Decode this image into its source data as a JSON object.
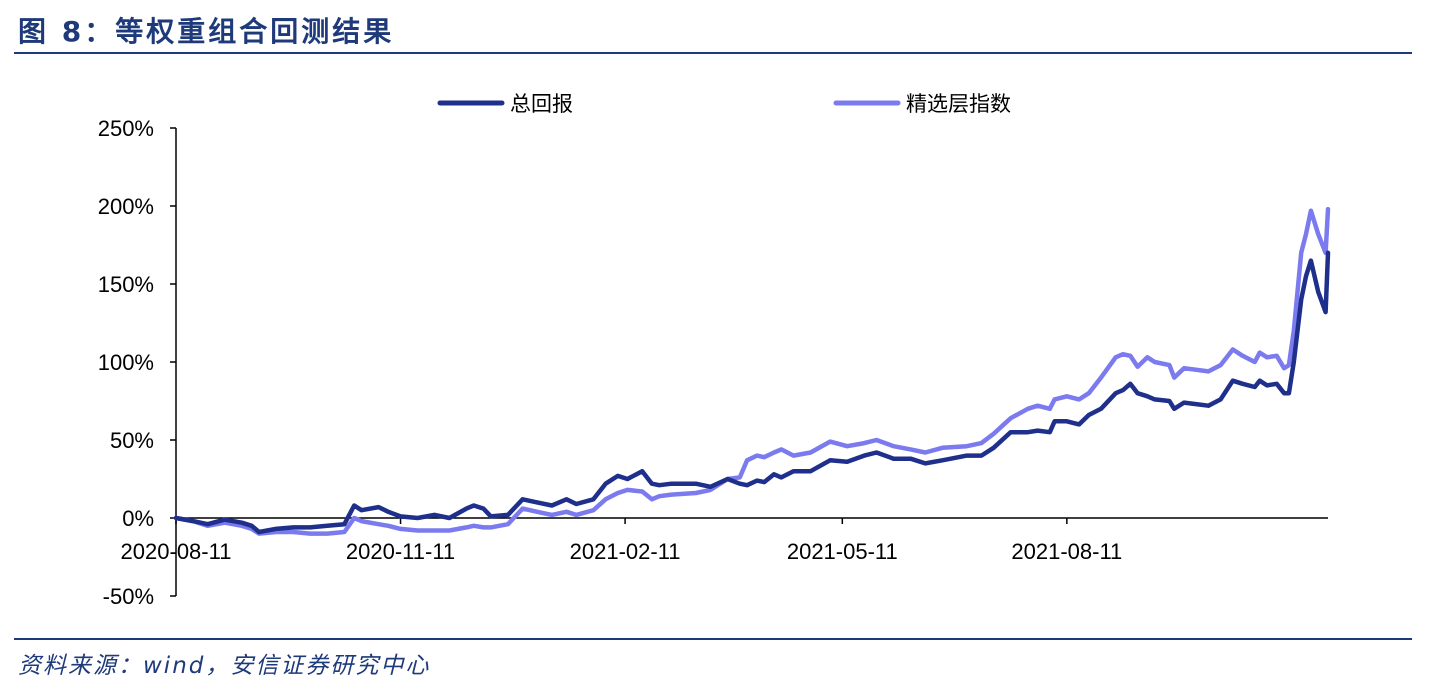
{
  "figure": {
    "title": "图 8：等权重组合回测结果",
    "source": "资料来源：wind，安信证券研究中心"
  },
  "chart_data": {
    "type": "line",
    "title": "",
    "xlabel": "",
    "ylabel": "",
    "ylim": [
      -50,
      250
    ],
    "y_ticks": [
      -50,
      0,
      50,
      100,
      150,
      200,
      250
    ],
    "y_tick_labels": [
      "-50%",
      "0%",
      "50%",
      "100%",
      "150%",
      "200%",
      "250%"
    ],
    "x_range": [
      "2020-08-11",
      "2021-11-26"
    ],
    "x_tick_labels": [
      "2020-08-11",
      "2020-11-11",
      "2021-02-11",
      "2021-05-11",
      "2021-08-11"
    ],
    "legend_position": "top",
    "grid": false,
    "series": [
      {
        "name": "总回报",
        "color": "#1f2f8c",
        "points": [
          [
            "2020-08-11",
            0
          ],
          [
            "2020-08-18",
            -2
          ],
          [
            "2020-08-24",
            -4
          ],
          [
            "2020-08-31",
            -1
          ],
          [
            "2020-09-07",
            -3
          ],
          [
            "2020-09-11",
            -5
          ],
          [
            "2020-09-14",
            -9
          ],
          [
            "2020-09-21",
            -7
          ],
          [
            "2020-09-28",
            -6
          ],
          [
            "2020-10-05",
            -6
          ],
          [
            "2020-10-12",
            -5
          ],
          [
            "2020-10-19",
            -4
          ],
          [
            "2020-10-23",
            8
          ],
          [
            "2020-10-26",
            5
          ],
          [
            "2020-11-02",
            7
          ],
          [
            "2020-11-06",
            4
          ],
          [
            "2020-11-11",
            1
          ],
          [
            "2020-11-18",
            0
          ],
          [
            "2020-11-25",
            2
          ],
          [
            "2020-12-01",
            0
          ],
          [
            "2020-12-08",
            6
          ],
          [
            "2020-12-11",
            8
          ],
          [
            "2020-12-15",
            6
          ],
          [
            "2020-12-18",
            1
          ],
          [
            "2020-12-25",
            2
          ],
          [
            "2020-12-31",
            12
          ],
          [
            "2021-01-06",
            10
          ],
          [
            "2021-01-12",
            8
          ],
          [
            "2021-01-18",
            12
          ],
          [
            "2021-01-22",
            9
          ],
          [
            "2021-01-29",
            12
          ],
          [
            "2021-02-03",
            22
          ],
          [
            "2021-02-08",
            27
          ],
          [
            "2021-02-12",
            25
          ],
          [
            "2021-02-18",
            30
          ],
          [
            "2021-02-22",
            22
          ],
          [
            "2021-02-25",
            21
          ],
          [
            "2021-03-02",
            22
          ],
          [
            "2021-03-12",
            22
          ],
          [
            "2021-03-18",
            20
          ],
          [
            "2021-03-25",
            25
          ],
          [
            "2021-03-30",
            22
          ],
          [
            "2021-04-02",
            21
          ],
          [
            "2021-04-06",
            24
          ],
          [
            "2021-04-09",
            23
          ],
          [
            "2021-04-13",
            28
          ],
          [
            "2021-04-16",
            26
          ],
          [
            "2021-04-21",
            30
          ],
          [
            "2021-04-28",
            30
          ],
          [
            "2021-05-06",
            37
          ],
          [
            "2021-05-13",
            36
          ],
          [
            "2021-05-20",
            40
          ],
          [
            "2021-05-25",
            42
          ],
          [
            "2021-06-01",
            38
          ],
          [
            "2021-06-08",
            38
          ],
          [
            "2021-06-14",
            35
          ],
          [
            "2021-06-21",
            37
          ],
          [
            "2021-07-01",
            40
          ],
          [
            "2021-07-07",
            40
          ],
          [
            "2021-07-12",
            45
          ],
          [
            "2021-07-19",
            55
          ],
          [
            "2021-07-26",
            55
          ],
          [
            "2021-07-30",
            56
          ],
          [
            "2021-08-04",
            55
          ],
          [
            "2021-08-06",
            62
          ],
          [
            "2021-08-11",
            62
          ],
          [
            "2021-08-16",
            60
          ],
          [
            "2021-08-20",
            66
          ],
          [
            "2021-08-25",
            70
          ],
          [
            "2021-08-31",
            80
          ],
          [
            "2021-09-03",
            82
          ],
          [
            "2021-09-06",
            86
          ],
          [
            "2021-09-09",
            80
          ],
          [
            "2021-09-13",
            78
          ],
          [
            "2021-09-16",
            76
          ],
          [
            "2021-09-22",
            75
          ],
          [
            "2021-09-24",
            70
          ],
          [
            "2021-09-28",
            74
          ],
          [
            "2021-10-08",
            72
          ],
          [
            "2021-10-13",
            76
          ],
          [
            "2021-10-18",
            88
          ],
          [
            "2021-10-22",
            86
          ],
          [
            "2021-10-27",
            84
          ],
          [
            "2021-10-29",
            88
          ],
          [
            "2021-11-01",
            85
          ],
          [
            "2021-11-05",
            86
          ],
          [
            "2021-11-08",
            80
          ],
          [
            "2021-11-10",
            80
          ],
          [
            "2021-11-12",
            100
          ],
          [
            "2021-11-15",
            140
          ],
          [
            "2021-11-17",
            155
          ],
          [
            "2021-11-19",
            165
          ],
          [
            "2021-11-22",
            145
          ],
          [
            "2021-11-25",
            132
          ],
          [
            "2021-11-26",
            170
          ]
        ]
      },
      {
        "name": "精选层指数",
        "color": "#7b7bef",
        "points": [
          [
            "2020-08-11",
            0
          ],
          [
            "2020-08-18",
            -2
          ],
          [
            "2020-08-24",
            -5
          ],
          [
            "2020-08-31",
            -3
          ],
          [
            "2020-09-07",
            -5
          ],
          [
            "2020-09-11",
            -7
          ],
          [
            "2020-09-14",
            -10
          ],
          [
            "2020-09-21",
            -9
          ],
          [
            "2020-09-28",
            -9
          ],
          [
            "2020-10-05",
            -10
          ],
          [
            "2020-10-12",
            -10
          ],
          [
            "2020-10-19",
            -9
          ],
          [
            "2020-10-23",
            0
          ],
          [
            "2020-10-26",
            -2
          ],
          [
            "2020-11-02",
            -4
          ],
          [
            "2020-11-06",
            -5
          ],
          [
            "2020-11-11",
            -7
          ],
          [
            "2020-11-18",
            -8
          ],
          [
            "2020-11-25",
            -8
          ],
          [
            "2020-12-01",
            -8
          ],
          [
            "2020-12-08",
            -6
          ],
          [
            "2020-12-11",
            -5
          ],
          [
            "2020-12-15",
            -6
          ],
          [
            "2020-12-18",
            -6
          ],
          [
            "2020-12-25",
            -4
          ],
          [
            "2020-12-31",
            6
          ],
          [
            "2021-01-06",
            4
          ],
          [
            "2021-01-12",
            2
          ],
          [
            "2021-01-18",
            4
          ],
          [
            "2021-01-22",
            2
          ],
          [
            "2021-01-29",
            5
          ],
          [
            "2021-02-03",
            12
          ],
          [
            "2021-02-08",
            16
          ],
          [
            "2021-02-12",
            18
          ],
          [
            "2021-02-18",
            17
          ],
          [
            "2021-02-22",
            12
          ],
          [
            "2021-02-25",
            14
          ],
          [
            "2021-03-02",
            15
          ],
          [
            "2021-03-12",
            16
          ],
          [
            "2021-03-18",
            18
          ],
          [
            "2021-03-25",
            25
          ],
          [
            "2021-03-30",
            26
          ],
          [
            "2021-04-02",
            37
          ],
          [
            "2021-04-06",
            40
          ],
          [
            "2021-04-09",
            39
          ],
          [
            "2021-04-13",
            42
          ],
          [
            "2021-04-16",
            44
          ],
          [
            "2021-04-21",
            40
          ],
          [
            "2021-04-28",
            42
          ],
          [
            "2021-05-06",
            49
          ],
          [
            "2021-05-13",
            46
          ],
          [
            "2021-05-20",
            48
          ],
          [
            "2021-05-25",
            50
          ],
          [
            "2021-06-01",
            46
          ],
          [
            "2021-06-08",
            44
          ],
          [
            "2021-06-14",
            42
          ],
          [
            "2021-06-21",
            45
          ],
          [
            "2021-07-01",
            46
          ],
          [
            "2021-07-07",
            48
          ],
          [
            "2021-07-12",
            54
          ],
          [
            "2021-07-19",
            64
          ],
          [
            "2021-07-26",
            70
          ],
          [
            "2021-07-30",
            72
          ],
          [
            "2021-08-04",
            70
          ],
          [
            "2021-08-06",
            76
          ],
          [
            "2021-08-11",
            78
          ],
          [
            "2021-08-16",
            76
          ],
          [
            "2021-08-20",
            80
          ],
          [
            "2021-08-25",
            90
          ],
          [
            "2021-08-31",
            103
          ],
          [
            "2021-09-03",
            105
          ],
          [
            "2021-09-06",
            104
          ],
          [
            "2021-09-09",
            97
          ],
          [
            "2021-09-13",
            103
          ],
          [
            "2021-09-16",
            100
          ],
          [
            "2021-09-22",
            98
          ],
          [
            "2021-09-24",
            90
          ],
          [
            "2021-09-28",
            96
          ],
          [
            "2021-10-08",
            94
          ],
          [
            "2021-10-13",
            98
          ],
          [
            "2021-10-18",
            108
          ],
          [
            "2021-10-22",
            104
          ],
          [
            "2021-10-27",
            100
          ],
          [
            "2021-10-29",
            106
          ],
          [
            "2021-11-01",
            103
          ],
          [
            "2021-11-05",
            104
          ],
          [
            "2021-11-08",
            96
          ],
          [
            "2021-11-10",
            98
          ],
          [
            "2021-11-12",
            120
          ],
          [
            "2021-11-15",
            170
          ],
          [
            "2021-11-17",
            182
          ],
          [
            "2021-11-19",
            197
          ],
          [
            "2021-11-22",
            182
          ],
          [
            "2021-11-25",
            170
          ],
          [
            "2021-11-26",
            198
          ]
        ]
      }
    ]
  }
}
